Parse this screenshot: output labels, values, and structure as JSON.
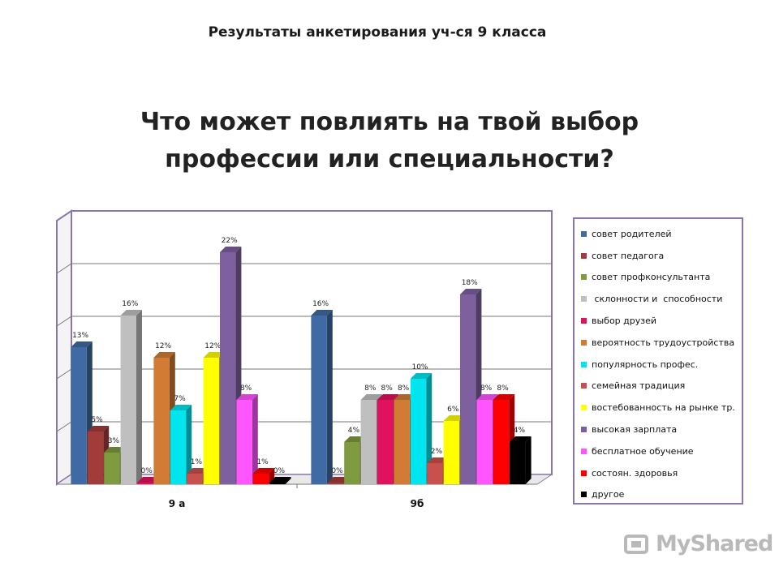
{
  "header": {
    "subtitle": "Результаты анкетирования уч-ся 9 класса",
    "title_line1": "Что может повлиять на твой выбор",
    "title_line2": "профессии или специальности?"
  },
  "logo": {
    "text": "MyShared",
    "icon": "myshared-logo-icon"
  },
  "chart_data": {
    "type": "bar",
    "categories": [
      "9 а",
      "9б"
    ],
    "ylim": [
      0,
      25
    ],
    "grid": true,
    "legend_position": "right",
    "value_suffix": "%",
    "series": [
      {
        "name": "совет родителей",
        "color": "#3f6aa3",
        "values": [
          13,
          16
        ]
      },
      {
        "name": "совет педагога",
        "color": "#a23c3a",
        "values": [
          5,
          0
        ]
      },
      {
        "name": "совет профконсультанта",
        "color": "#7f9a3f",
        "values": [
          3,
          4
        ]
      },
      {
        "name": " склонности и  способности",
        "color": "#bfbfbf",
        "values": [
          16,
          8
        ]
      },
      {
        "name": "выбор друзей",
        "color": "#e0115f",
        "values": [
          0,
          8
        ]
      },
      {
        "name": "вероятность трудоустройства",
        "color": "#d27b35",
        "values": [
          12,
          8
        ]
      },
      {
        "name": "популярность профес.",
        "color": "#00e5ee",
        "values": [
          7,
          10
        ]
      },
      {
        "name": "семейная традиция",
        "color": "#c8504d",
        "values": [
          1,
          2
        ]
      },
      {
        "name": "востебованность на рынке тр.",
        "color": "#ffff00",
        "values": [
          12,
          6
        ]
      },
      {
        "name": "высокая зарплата",
        "color": "#7e60a0",
        "values": [
          22,
          18
        ]
      },
      {
        "name": "бесплатное обучение",
        "color": "#ff55ff",
        "values": [
          8,
          8
        ]
      },
      {
        "name": "состоян. здоровья",
        "color": "#ff0000",
        "values": [
          1,
          8
        ]
      },
      {
        "name": "другое",
        "color": "#000000",
        "values": [
          0,
          4
        ]
      }
    ]
  }
}
